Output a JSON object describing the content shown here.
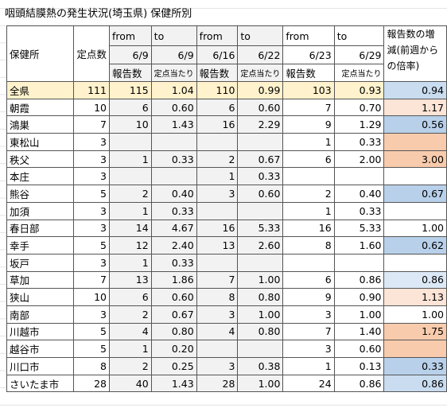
{
  "title": "咽頭結膜熱の発生状況(埼玉県) 保健所別",
  "header": {
    "labels": [
      "保健所",
      "定点数",
      "from",
      "to",
      "from",
      "to",
      "from",
      "to",
      "報告数の増減(前週からの倍率)"
    ],
    "dates": [
      "6/9",
      "6/9",
      "6/16",
      "6/22",
      "6/23",
      "6/29"
    ],
    "units": [
      "報告数",
      "定点当たり",
      "報告数",
      "定点当たり",
      "報告数",
      "定点当たり"
    ]
  },
  "rows": [
    [
      "全県",
      "111",
      "115",
      "1.04",
      "110",
      "0.99",
      "103",
      "0.93",
      "0.94"
    ],
    [
      "朝霞",
      "10",
      "6",
      "0.60",
      "6",
      "0.60",
      "7",
      "0.70",
      "1.17"
    ],
    [
      "鴻巣",
      "7",
      "10",
      "1.43",
      "16",
      "2.29",
      "9",
      "1.29",
      "0.56"
    ],
    [
      "東松山",
      "3",
      null,
      null,
      null,
      null,
      "1",
      "0.33",
      null
    ],
    [
      "秩父",
      "3",
      "1",
      "0.33",
      "2",
      "0.67",
      "6",
      "2.00",
      "3.00"
    ],
    [
      "本庄",
      "3",
      null,
      null,
      "1",
      "0.33",
      null,
      null,
      null
    ],
    [
      "熊谷",
      "5",
      "2",
      "0.40",
      "3",
      "0.60",
      "2",
      "0.40",
      "0.67"
    ],
    [
      "加須",
      "3",
      "1",
      "0.33",
      null,
      null,
      "1",
      "0.33",
      null
    ],
    [
      "春日部",
      "3",
      "14",
      "4.67",
      "16",
      "5.33",
      "16",
      "5.33",
      "1.00"
    ],
    [
      "幸手",
      "5",
      "12",
      "2.40",
      "13",
      "2.60",
      "8",
      "1.60",
      "0.62"
    ],
    [
      "坂戸",
      "3",
      "1",
      "0.33",
      null,
      null,
      null,
      null,
      null
    ],
    [
      "草加",
      "7",
      "13",
      "1.86",
      "7",
      "1.00",
      "6",
      "0.86",
      "0.86"
    ],
    [
      "狭山",
      "10",
      "6",
      "0.60",
      "8",
      "0.80",
      "9",
      "0.90",
      "1.13"
    ],
    [
      "南部",
      "3",
      "2",
      "0.67",
      "3",
      "1.00",
      "3",
      "1.00",
      "1.00"
    ],
    [
      "川越市",
      "5",
      "4",
      "0.80",
      "4",
      "0.80",
      "7",
      "1.40",
      "1.75"
    ],
    [
      "越谷市",
      "5",
      "1",
      "0.20",
      null,
      null,
      "3",
      "0.60",
      null
    ],
    [
      "川口市",
      "8",
      "2",
      "0.25",
      "3",
      "0.38",
      "1",
      "0.13",
      "0.33"
    ],
    [
      "さいたま市",
      "28",
      "40",
      "1.43",
      "28",
      "1.00",
      "24",
      "0.86",
      "0.86"
    ]
  ],
  "ratio_colors": [
    "#c9dcf0",
    "#fce4d6",
    "#b8d0ea",
    "#f8cbad",
    "#f8cbad",
    null,
    "#b8d0ea",
    null,
    null,
    "#b8d0ea",
    null,
    "#dce8f5",
    "#fce4d6",
    null,
    "#f8cbad",
    "#f8cbad",
    "#b8d0ea",
    "#c9dcf0"
  ],
  "total_row_color": "#fff2cc"
}
